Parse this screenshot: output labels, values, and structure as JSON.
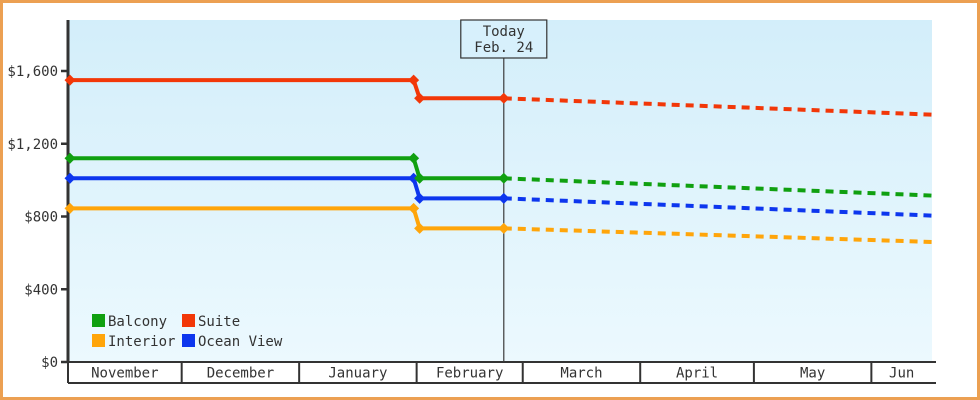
{
  "chart": {
    "colors": {
      "frame_border": "#eca052",
      "background": "#ffffff",
      "plot_top": "#d3eefa",
      "plot_bottom": "#ecf9fe",
      "axis": "#333333",
      "text": "#333333",
      "today_box_fill": "#d7f0fc"
    }
  },
  "chart_data": {
    "type": "line",
    "title": "",
    "x": {
      "categories": [
        "November",
        "December",
        "January",
        "February",
        "March",
        "April",
        "May",
        "Jun"
      ],
      "days_per_cell": [
        30,
        31,
        31,
        28,
        31,
        30,
        31,
        16
      ],
      "total_days": 228
    },
    "y": {
      "ticks": [
        {
          "label": "$0",
          "value": 0
        },
        {
          "label": "$400",
          "value": 400
        },
        {
          "label": "$800",
          "value": 800
        },
        {
          "label": "$1,200",
          "value": 1200
        },
        {
          "label": "$1,600",
          "value": 1600
        }
      ],
      "ylim": [
        0,
        1880
      ]
    },
    "today": {
      "label_line1": "Today",
      "label_line2": "Feb. 24",
      "day": 115
    },
    "price_drop_day": 92,
    "series": [
      {
        "name": "Balcony",
        "color": "#10a010",
        "initial": 1120,
        "current": 1010,
        "projected_end": 915
      },
      {
        "name": "Suite",
        "color": "#f23708",
        "initial": 1550,
        "current": 1450,
        "projected_end": 1360
      },
      {
        "name": "Interior",
        "color": "#ffa50a",
        "initial": 845,
        "current": 735,
        "projected_end": 660
      },
      {
        "name": "Ocean View",
        "color": "#0d36ee",
        "initial": 1010,
        "current": 900,
        "projected_end": 805
      }
    ],
    "legend": {
      "position": "bottom-left",
      "items": [
        {
          "label": "Balcony"
        },
        {
          "label": "Suite"
        },
        {
          "label": "Interior"
        },
        {
          "label": "Ocean View"
        }
      ]
    }
  }
}
